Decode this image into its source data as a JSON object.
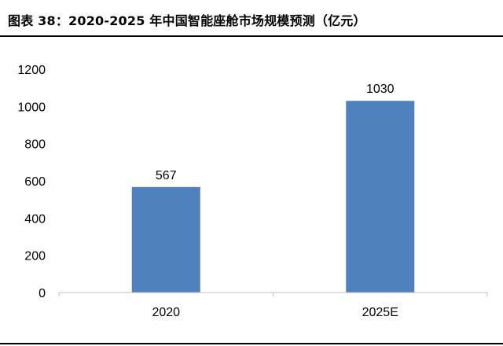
{
  "header": {
    "title": "图表 38：2020-2025 年中国智能座舱市场规模预测（亿元）"
  },
  "chart_data": {
    "type": "bar",
    "title": "图表 38：2020-2025 年中国智能座舱市场规模预测（亿元）",
    "categories": [
      "2020",
      "2025E"
    ],
    "values": [
      567,
      1030
    ],
    "data_labels": [
      "567",
      "1030"
    ],
    "ylim": [
      0,
      1200
    ],
    "yticks": [
      0,
      200,
      400,
      600,
      800,
      1000,
      1200
    ],
    "grid": false,
    "legend": "none",
    "bar_color": "#4F81BD"
  }
}
